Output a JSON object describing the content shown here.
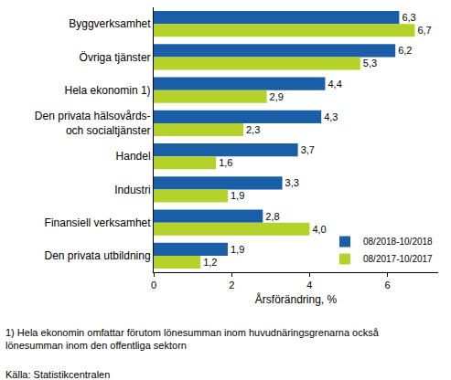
{
  "chart_data": {
    "type": "bar",
    "orientation": "horizontal",
    "categories": [
      "Byggverksamhet",
      "Övriga tjänster",
      "Hela ekonomin 1)",
      "Den privata hälsovårds- och socialtjänster",
      "Handel",
      "Industri",
      "Finansiell verksamhet",
      "Den privata utbildning"
    ],
    "series": [
      {
        "name": "08/2018-10/2018",
        "color": "#1a5ea8",
        "values": [
          6.3,
          6.2,
          4.4,
          4.3,
          3.7,
          3.3,
          2.8,
          1.9
        ],
        "value_labels": [
          "6,3",
          "6,2",
          "4,4",
          "4,3",
          "3,7",
          "3,3",
          "2,8",
          "1,9"
        ]
      },
      {
        "name": "08/2017-10/2017",
        "color": "#b4d22a",
        "values": [
          6.7,
          5.3,
          2.9,
          2.3,
          1.6,
          1.9,
          4.0,
          1.2
        ],
        "value_labels": [
          "6,7",
          "5,3",
          "2,9",
          "2,3",
          "1,6",
          "1,9",
          "4,0",
          "1,2"
        ]
      }
    ],
    "xlabel": "Årsförändring, %",
    "xlim": [
      0,
      7.3
    ],
    "xticks": [
      0,
      2,
      4,
      6
    ],
    "data_labels": true,
    "legend": "bottom right",
    "grid": false,
    "annotations": [
      "1) Hela ekonomin omfattar förutom lönesumman inom huvudnäringsgrenarna också lönesumman inom den offentliga sektorn",
      "Källa: Statistikcentralen"
    ]
  }
}
